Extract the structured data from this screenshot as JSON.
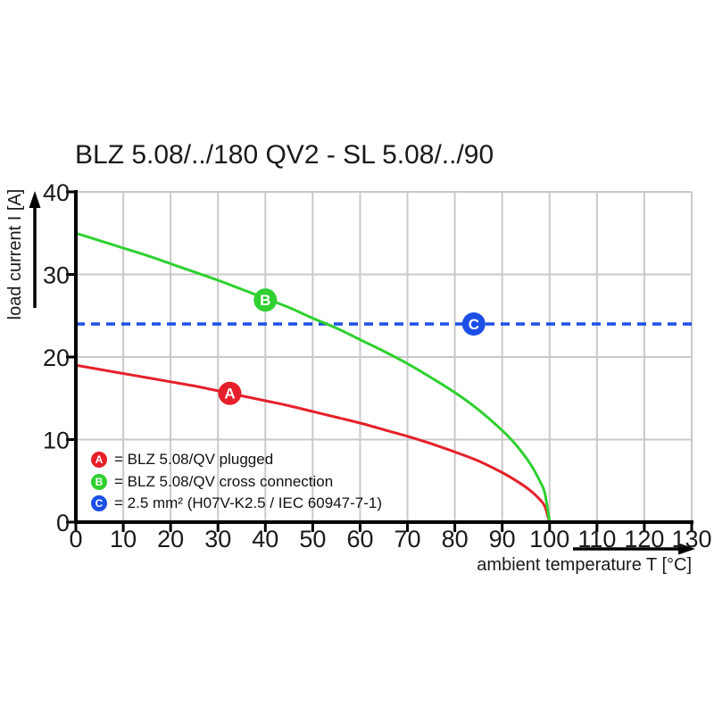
{
  "chart_data": {
    "type": "line",
    "title": "BLZ 5.08/../180 QV2 - SL 5.08/../90",
    "xlabel": "ambient temperature T [°C]",
    "ylabel": "load current I [A]",
    "xlim": [
      0,
      130
    ],
    "ylim": [
      0,
      40
    ],
    "x_ticks": [
      0,
      10,
      20,
      30,
      40,
      50,
      60,
      70,
      80,
      90,
      100,
      110,
      120,
      130
    ],
    "y_ticks": [
      0,
      10,
      20,
      30,
      40
    ],
    "grid": true,
    "grid_color": "#c9c9c9",
    "axis_color": "#000000",
    "series": [
      {
        "name": "BLZ 5.08/QV plugged",
        "color": "#e6202a",
        "style": "solid",
        "points": [
          [
            0,
            19.0
          ],
          [
            5,
            18.5
          ],
          [
            10,
            18.0
          ],
          [
            15,
            17.5
          ],
          [
            20,
            17.0
          ],
          [
            25,
            16.5
          ],
          [
            30,
            15.9
          ],
          [
            35,
            15.3
          ],
          [
            40,
            14.7
          ],
          [
            45,
            14.1
          ],
          [
            50,
            13.4
          ],
          [
            55,
            12.7
          ],
          [
            60,
            12.0
          ],
          [
            65,
            11.2
          ],
          [
            70,
            10.4
          ],
          [
            75,
            9.5
          ],
          [
            80,
            8.5
          ],
          [
            85,
            7.4
          ],
          [
            90,
            6.0
          ],
          [
            93,
            5.0
          ],
          [
            96,
            3.8
          ],
          [
            98,
            2.7
          ],
          [
            99,
            1.9
          ],
          [
            100,
            0
          ]
        ]
      },
      {
        "name": "BLZ 5.08/QV cross connection",
        "color": "#2fd030",
        "style": "solid",
        "points": [
          [
            0,
            35.0
          ],
          [
            5,
            34.1
          ],
          [
            10,
            33.2
          ],
          [
            15,
            32.3
          ],
          [
            20,
            31.3
          ],
          [
            25,
            30.3
          ],
          [
            30,
            29.3
          ],
          [
            35,
            28.2
          ],
          [
            40,
            27.1
          ],
          [
            45,
            26.0
          ],
          [
            50,
            24.7
          ],
          [
            55,
            23.5
          ],
          [
            60,
            22.1
          ],
          [
            65,
            20.7
          ],
          [
            70,
            19.2
          ],
          [
            75,
            17.5
          ],
          [
            80,
            15.7
          ],
          [
            85,
            13.6
          ],
          [
            90,
            11.1
          ],
          [
            93,
            9.3
          ],
          [
            96,
            7.0
          ],
          [
            98,
            4.9
          ],
          [
            99,
            3.5
          ],
          [
            100,
            0
          ]
        ]
      },
      {
        "name": "2.5 mm² (H07V-K2.5 / IEC 60947-7-1)",
        "color": "#1b4fe6",
        "style": "dashed",
        "points": [
          [
            0,
            24
          ],
          [
            130,
            24
          ]
        ]
      }
    ],
    "markers": [
      {
        "letter": "A",
        "x": 32.5,
        "y": 15.6,
        "color": "#e6202a"
      },
      {
        "letter": "B",
        "x": 40,
        "y": 26.9,
        "color": "#2fd030"
      },
      {
        "letter": "C",
        "x": 84,
        "y": 24,
        "color": "#1b4fe6"
      }
    ]
  },
  "legend": {
    "items": [
      {
        "letter": "A",
        "label": "= BLZ 5.08/QV plugged",
        "color": "#e6202a"
      },
      {
        "letter": "B",
        "label": "= BLZ 5.08/QV cross connection",
        "color": "#2fd030"
      },
      {
        "letter": "C",
        "label": "= 2.5 mm² (H07V-K2.5 / IEC 60947-7-1)",
        "color": "#1b4fe6"
      }
    ]
  }
}
